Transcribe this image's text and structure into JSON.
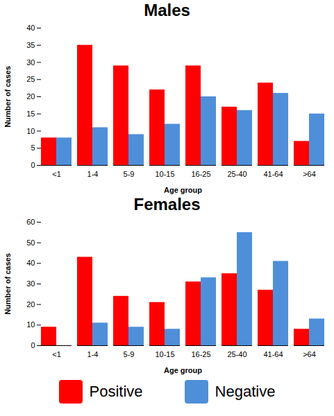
{
  "chart_data": [
    {
      "type": "bar",
      "title": "Males",
      "x_label": "Age group",
      "y_label": "Number of cases",
      "categories": [
        "<1",
        "1-4",
        "5-9",
        "10-15",
        "16-25",
        "25-40",
        "41-64",
        ">64"
      ],
      "series": [
        {
          "name": "Positive",
          "color": "#ff0000",
          "values": [
            8,
            35,
            29,
            22,
            29,
            17,
            24,
            7
          ]
        },
        {
          "name": "Negative",
          "color": "#4f8fd9",
          "values": [
            8,
            11,
            9,
            12,
            20,
            16,
            21,
            15
          ]
        }
      ],
      "ylim": [
        0,
        40
      ],
      "yticks": [
        0,
        5,
        10,
        15,
        20,
        25,
        30,
        35,
        40
      ],
      "grid": false
    },
    {
      "type": "bar",
      "title": "Females",
      "x_label": "Age group",
      "y_label": "Number of cases",
      "categories": [
        "<1",
        "1-4",
        "5-9",
        "10-15",
        "16-25",
        "25-40",
        "41-64",
        ">64"
      ],
      "series": [
        {
          "name": "Positive",
          "color": "#ff0000",
          "values": [
            9,
            43,
            24,
            21,
            31,
            35,
            27,
            8
          ]
        },
        {
          "name": "Negative",
          "color": "#4f8fd9",
          "values": [
            0,
            11,
            9,
            8,
            33,
            55,
            41,
            13
          ]
        }
      ],
      "ylim": [
        0,
        60
      ],
      "yticks": [
        0,
        10,
        20,
        30,
        40,
        50,
        60
      ],
      "grid": false,
      "legend": "bottom"
    }
  ]
}
